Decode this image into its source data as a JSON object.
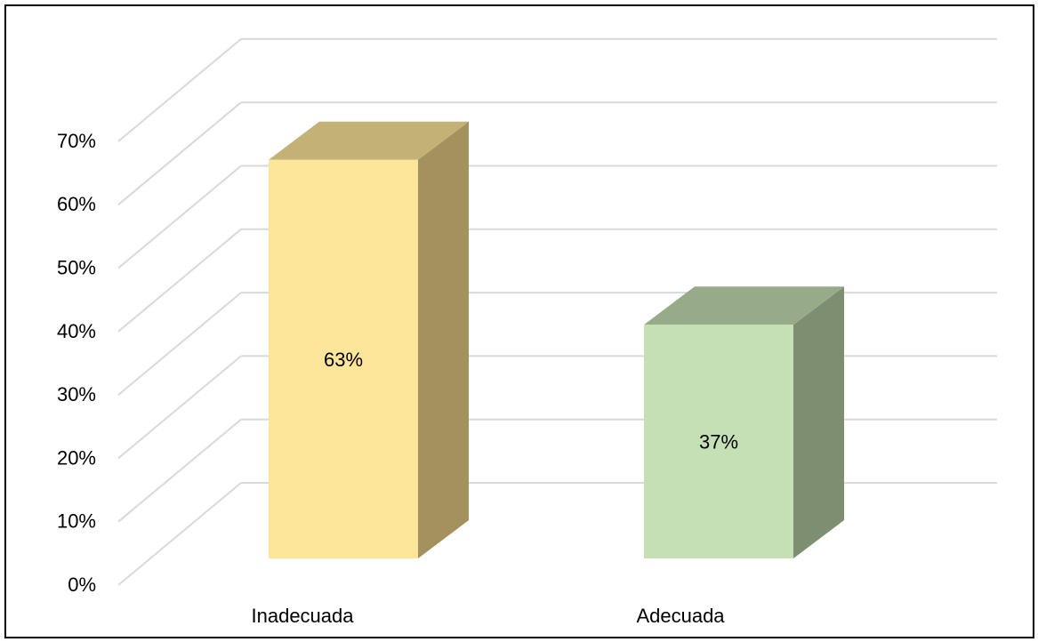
{
  "chart_data": {
    "type": "bar",
    "title": "",
    "xlabel": "",
    "ylabel": "",
    "categories": [
      "Inadecuada",
      "Adecuada"
    ],
    "values": [
      63,
      37
    ],
    "value_labels": [
      "63%",
      "37%"
    ],
    "ylim": [
      0,
      70
    ],
    "y_tick_values": [
      0,
      10,
      20,
      30,
      40,
      50,
      60,
      70
    ],
    "y_tick_labels": [
      "0%",
      "10%",
      "20%",
      "30%",
      "40%",
      "50%",
      "60%",
      "70%"
    ],
    "grid": true,
    "legend": "none",
    "style": "3d-column",
    "colors": {
      "Inadecuada": {
        "front": "#FDE59A",
        "top": "#C4B175",
        "side": "#A3915E"
      },
      "Adecuada": {
        "front": "#C5E0B4",
        "top": "#97AB89",
        "side": "#7E8F71"
      },
      "grid": "#D9D9D9",
      "text": "#000000"
    }
  }
}
